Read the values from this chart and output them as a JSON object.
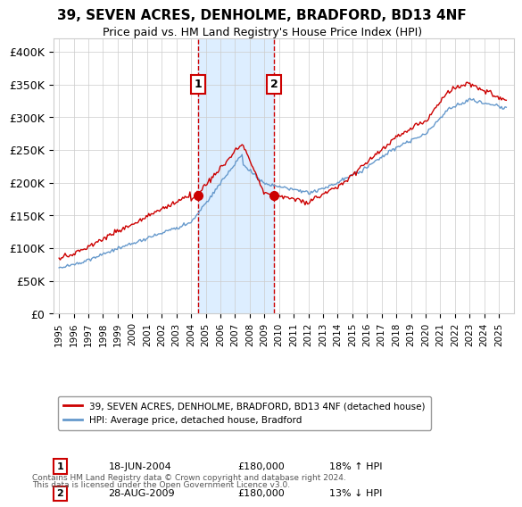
{
  "title": "39, SEVEN ACRES, DENHOLME, BRADFORD, BD13 4NF",
  "subtitle": "Price paid vs. HM Land Registry's House Price Index (HPI)",
  "ylabel_ticks": [
    "£0",
    "£50K",
    "£100K",
    "£150K",
    "£200K",
    "£250K",
    "£300K",
    "£350K",
    "£400K"
  ],
  "ytick_values": [
    0,
    50000,
    100000,
    150000,
    200000,
    250000,
    300000,
    350000,
    400000
  ],
  "ylim": [
    0,
    420000
  ],
  "sale1_date": "18-JUN-2004",
  "sale1_price": 180000,
  "sale1_pct": "18%",
  "sale1_dir": "↑",
  "sale2_date": "28-AUG-2009",
  "sale2_price": 180000,
  "sale2_pct": "13%",
  "sale2_dir": "↓",
  "legend_label1": "39, SEVEN ACRES, DENHOLME, BRADFORD, BD13 4NF (detached house)",
  "legend_label2": "HPI: Average price, detached house, Bradford",
  "footer1": "Contains HM Land Registry data © Crown copyright and database right 2024.",
  "footer2": "This data is licensed under the Open Government Licence v3.0.",
  "line_color_red": "#cc0000",
  "line_color_blue": "#6699cc",
  "sale1_x_year": 2004.46,
  "sale2_x_year": 2009.65,
  "shade_color": "#ddeeff",
  "dashed_color": "#cc0000",
  "xlim_left": 1994.6,
  "xlim_right": 2026.0
}
